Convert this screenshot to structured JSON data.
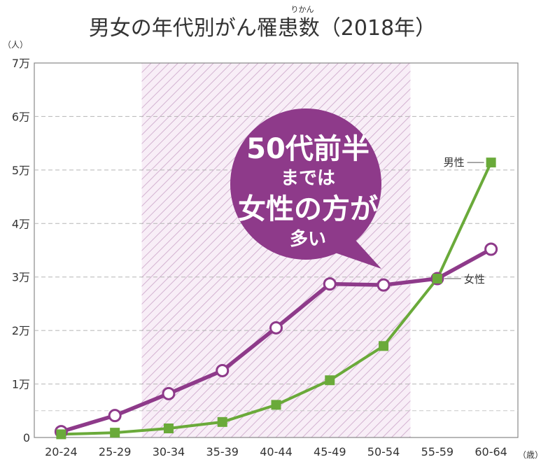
{
  "chart_data": {
    "type": "line",
    "title": "男女の年代別がん罹患数（2018年）",
    "title_ruby": "りかん",
    "ylabel": "（人）",
    "xlabel": "（歳）",
    "categories": [
      "20-24",
      "25-29",
      "30-34",
      "35-39",
      "40-44",
      "45-49",
      "50-54",
      "55-59",
      "60-64"
    ],
    "ylim": [
      0,
      70000
    ],
    "yticks": [
      {
        "value": 0,
        "label": "0"
      },
      {
        "value": 10000,
        "label": "1万"
      },
      {
        "value": 20000,
        "label": "2万"
      },
      {
        "value": 30000,
        "label": "3万"
      },
      {
        "value": 40000,
        "label": "4万"
      },
      {
        "value": 50000,
        "label": "5万"
      },
      {
        "value": 60000,
        "label": "6万"
      },
      {
        "value": 70000,
        "label": "7万"
      }
    ],
    "minor_gridlines": [
      5000
    ],
    "series": [
      {
        "name": "女性",
        "color": "#8e3a8a",
        "marker": "open-circle",
        "values": [
          1100,
          4100,
          8200,
          12500,
          20500,
          28700,
          28500,
          29700,
          35200
        ]
      },
      {
        "name": "男性",
        "color": "#6aaa3a",
        "marker": "square",
        "values": [
          600,
          900,
          1700,
          2900,
          6100,
          10700,
          17100,
          29700,
          51400
        ]
      }
    ],
    "highlight_range": {
      "from": "30-34",
      "to": "50-54"
    },
    "annotation": {
      "lines": [
        "50代前半",
        "までは",
        "女性の方が",
        "多い"
      ],
      "color": "#8e3a8a"
    },
    "grid": true
  }
}
